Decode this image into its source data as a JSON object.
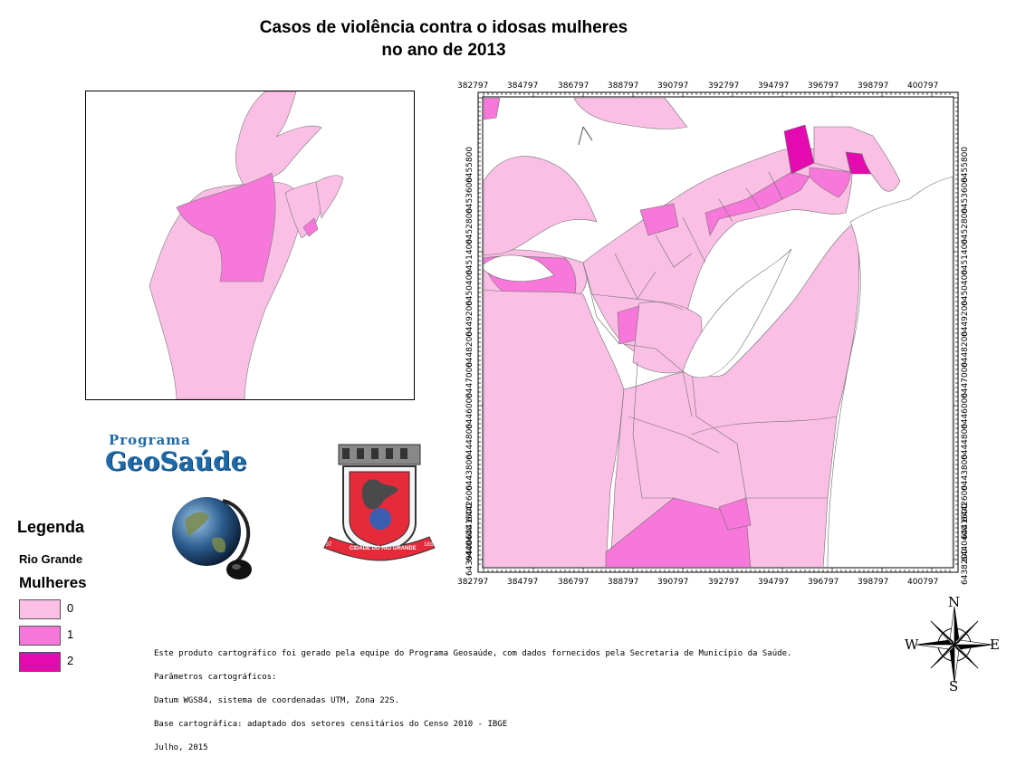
{
  "title": {
    "line1": "Casos de violência contra o idosas mulheres",
    "line2": "no ano de 2013"
  },
  "grid": {
    "x_labels": [
      "382797",
      "384797",
      "386797",
      "388797",
      "390797",
      "392797",
      "394797",
      "396797",
      "398797",
      "400797"
    ],
    "y_left_labels": [
      "6455800",
      "6453600",
      "6452800",
      "6451400",
      "6450400",
      "6449200",
      "6448200",
      "6447000",
      "6446000",
      "6444800",
      "6443800",
      "6442600",
      "6441600",
      "6440400",
      "6439400"
    ],
    "y_right_labels": [
      "6455800",
      "6453600",
      "6452800",
      "6451400",
      "6450400",
      "6449200",
      "6448200",
      "6447000",
      "6446000",
      "6444800",
      "6443800",
      "6442600",
      "6441600",
      "6440400",
      "6438200"
    ]
  },
  "logos": {
    "geosaude_prefix": "Programa",
    "geosaude_name": "GeoSaúde",
    "crest_year_left": "1737",
    "crest_banner": "CIDADE DO RIO GRANDE",
    "crest_year_right": "1835"
  },
  "legend": {
    "title": "Legenda",
    "subtitle": "Rio Grande",
    "field": "Mulheres",
    "classes": [
      {
        "label": "0",
        "color": "#fbbfe5"
      },
      {
        "label": "1",
        "color": "#f778da"
      },
      {
        "label": "2",
        "color": "#e30ab0"
      }
    ]
  },
  "notes": [
    "Este produto cartográfico foi gerado pela equipe do Programa Geosaúde, com dados fornecidos pela Secretaria de Município da Saúde.",
    "Parâmetros cartográficos:",
    "Datum WGS84, sistema de coordenadas UTM, Zona 22S.",
    "Base cartográfica: adaptado dos setores censitários do Censo 2010 - IBGE",
    "Julho, 2015"
  ],
  "compass": {
    "n": "N",
    "s": "S",
    "e": "E",
    "w": "W"
  }
}
